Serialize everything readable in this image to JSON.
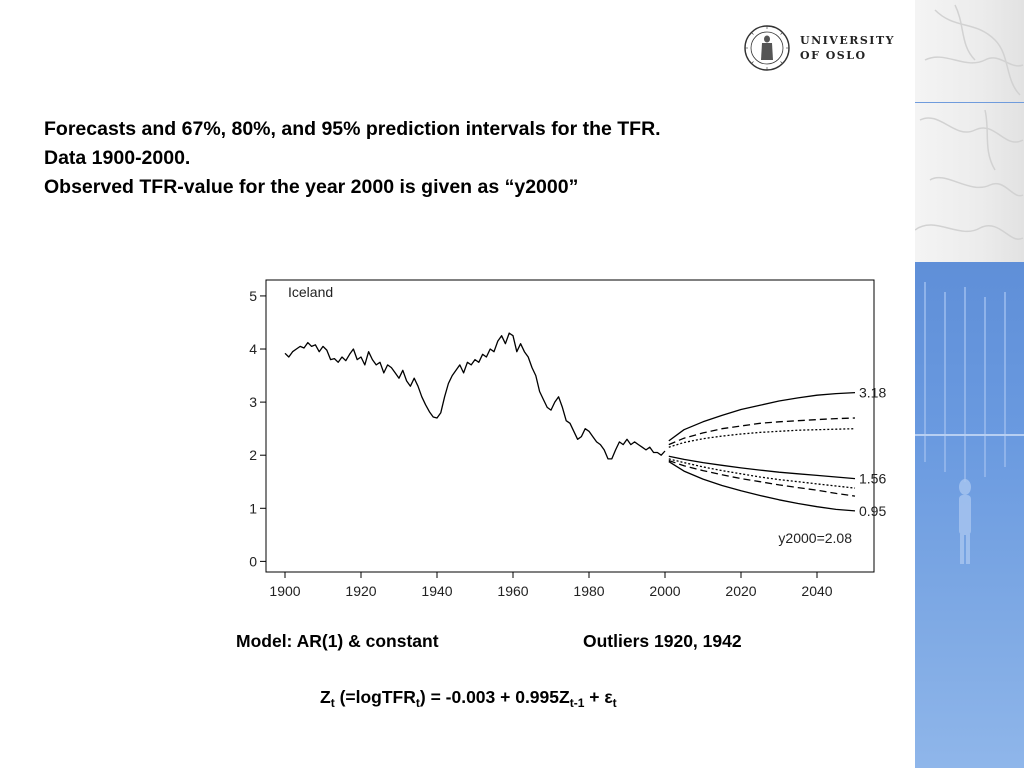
{
  "header": {
    "logo_line1": "UNIVERSITY",
    "logo_line2": "OF OSLO"
  },
  "title": {
    "line1": "Forecasts and 67%, 80%, and 95% prediction intervals for the TFR.",
    "line2": "Data 1900-2000.",
    "line3": "Observed TFR-value for the year 2000 is given as “y2000”"
  },
  "colors": {
    "series": "#000000",
    "side_panel_blue": "#6a9ae0"
  },
  "chart_data": {
    "type": "line",
    "title": "Iceland",
    "xlabel": "",
    "ylabel": "",
    "xlim": [
      1895,
      2055
    ],
    "ylim": [
      -0.2,
      5.3
    ],
    "x_ticks": [
      1900,
      1920,
      1940,
      1960,
      1980,
      2000,
      2020,
      2040
    ],
    "y_ticks": [
      0,
      1,
      2,
      3,
      4,
      5
    ],
    "grid": false,
    "series": [
      {
        "style": "solid",
        "points": [
          [
            1900,
            3.92
          ],
          [
            1901,
            3.85
          ],
          [
            1902,
            3.95
          ],
          [
            1903,
            4.0
          ],
          [
            1904,
            4.05
          ],
          [
            1905,
            4.02
          ],
          [
            1906,
            4.12
          ],
          [
            1907,
            4.05
          ],
          [
            1908,
            4.08
          ],
          [
            1909,
            3.95
          ],
          [
            1910,
            4.05
          ],
          [
            1911,
            3.98
          ],
          [
            1912,
            3.8
          ],
          [
            1913,
            3.82
          ],
          [
            1914,
            3.75
          ],
          [
            1915,
            3.85
          ],
          [
            1916,
            3.78
          ],
          [
            1917,
            3.9
          ],
          [
            1918,
            4.0
          ],
          [
            1919,
            3.8
          ],
          [
            1920,
            3.85
          ],
          [
            1921,
            3.7
          ],
          [
            1922,
            3.95
          ],
          [
            1923,
            3.8
          ],
          [
            1924,
            3.7
          ],
          [
            1925,
            3.75
          ],
          [
            1926,
            3.55
          ],
          [
            1927,
            3.7
          ],
          [
            1928,
            3.65
          ],
          [
            1929,
            3.55
          ],
          [
            1930,
            3.45
          ],
          [
            1931,
            3.6
          ],
          [
            1932,
            3.4
          ],
          [
            1933,
            3.3
          ],
          [
            1934,
            3.45
          ],
          [
            1935,
            3.3
          ],
          [
            1936,
            3.1
          ],
          [
            1937,
            2.95
          ],
          [
            1938,
            2.82
          ],
          [
            1939,
            2.72
          ],
          [
            1940,
            2.7
          ],
          [
            1941,
            2.8
          ],
          [
            1942,
            3.1
          ],
          [
            1943,
            3.35
          ],
          [
            1944,
            3.5
          ],
          [
            1945,
            3.6
          ],
          [
            1946,
            3.7
          ],
          [
            1947,
            3.55
          ],
          [
            1948,
            3.75
          ],
          [
            1949,
            3.7
          ],
          [
            1950,
            3.8
          ],
          [
            1951,
            3.75
          ],
          [
            1952,
            3.9
          ],
          [
            1953,
            3.85
          ],
          [
            1954,
            4.0
          ],
          [
            1955,
            3.95
          ],
          [
            1956,
            4.15
          ],
          [
            1957,
            4.25
          ],
          [
            1958,
            4.1
          ],
          [
            1959,
            4.3
          ],
          [
            1960,
            4.25
          ],
          [
            1961,
            3.95
          ],
          [
            1962,
            4.1
          ],
          [
            1963,
            3.95
          ],
          [
            1964,
            3.85
          ],
          [
            1965,
            3.65
          ],
          [
            1966,
            3.5
          ],
          [
            1967,
            3.2
          ],
          [
            1968,
            3.05
          ],
          [
            1969,
            2.9
          ],
          [
            1970,
            2.85
          ],
          [
            1971,
            3.0
          ],
          [
            1972,
            3.1
          ],
          [
            1973,
            2.9
          ],
          [
            1974,
            2.65
          ],
          [
            1975,
            2.6
          ],
          [
            1976,
            2.45
          ],
          [
            1977,
            2.3
          ],
          [
            1978,
            2.35
          ],
          [
            1979,
            2.5
          ],
          [
            1980,
            2.45
          ],
          [
            1981,
            2.35
          ],
          [
            1982,
            2.25
          ],
          [
            1983,
            2.2
          ],
          [
            1984,
            2.1
          ],
          [
            1985,
            1.93
          ],
          [
            1986,
            1.93
          ],
          [
            1987,
            2.1
          ],
          [
            1988,
            2.25
          ],
          [
            1989,
            2.2
          ],
          [
            1990,
            2.3
          ],
          [
            1991,
            2.2
          ],
          [
            1992,
            2.25
          ],
          [
            1993,
            2.2
          ],
          [
            1994,
            2.15
          ],
          [
            1995,
            2.1
          ],
          [
            1996,
            2.15
          ],
          [
            1997,
            2.05
          ],
          [
            1998,
            2.05
          ],
          [
            1999,
            2.0
          ],
          [
            2000,
            2.08
          ]
        ]
      },
      {
        "style": "solid",
        "end_label": "3.18",
        "points": [
          [
            2001,
            2.27
          ],
          [
            2005,
            2.48
          ],
          [
            2010,
            2.63
          ],
          [
            2015,
            2.75
          ],
          [
            2020,
            2.86
          ],
          [
            2025,
            2.94
          ],
          [
            2030,
            3.02
          ],
          [
            2035,
            3.08
          ],
          [
            2040,
            3.13
          ],
          [
            2045,
            3.16
          ],
          [
            2050,
            3.18
          ]
        ]
      },
      {
        "style": "dashed",
        "points": [
          [
            2001,
            2.2
          ],
          [
            2005,
            2.32
          ],
          [
            2010,
            2.42
          ],
          [
            2015,
            2.5
          ],
          [
            2020,
            2.55
          ],
          [
            2025,
            2.6
          ],
          [
            2030,
            2.63
          ],
          [
            2035,
            2.65
          ],
          [
            2040,
            2.67
          ],
          [
            2045,
            2.69
          ],
          [
            2050,
            2.7
          ]
        ]
      },
      {
        "style": "dotted",
        "points": [
          [
            2001,
            2.15
          ],
          [
            2005,
            2.24
          ],
          [
            2010,
            2.31
          ],
          [
            2015,
            2.36
          ],
          [
            2020,
            2.4
          ],
          [
            2025,
            2.43
          ],
          [
            2030,
            2.45
          ],
          [
            2035,
            2.47
          ],
          [
            2040,
            2.48
          ],
          [
            2045,
            2.49
          ],
          [
            2050,
            2.5
          ]
        ]
      },
      {
        "style": "solid",
        "end_label": "1.56",
        "points": [
          [
            2001,
            1.98
          ],
          [
            2005,
            1.92
          ],
          [
            2010,
            1.86
          ],
          [
            2015,
            1.81
          ],
          [
            2020,
            1.76
          ],
          [
            2025,
            1.72
          ],
          [
            2030,
            1.68
          ],
          [
            2035,
            1.65
          ],
          [
            2040,
            1.62
          ],
          [
            2045,
            1.59
          ],
          [
            2050,
            1.56
          ]
        ]
      },
      {
        "style": "dotted",
        "points": [
          [
            2001,
            1.93
          ],
          [
            2005,
            1.86
          ],
          [
            2010,
            1.78
          ],
          [
            2015,
            1.71
          ],
          [
            2020,
            1.65
          ],
          [
            2025,
            1.59
          ],
          [
            2030,
            1.54
          ],
          [
            2035,
            1.5
          ],
          [
            2040,
            1.46
          ],
          [
            2045,
            1.42
          ],
          [
            2050,
            1.38
          ]
        ]
      },
      {
        "style": "dashed",
        "points": [
          [
            2001,
            1.9
          ],
          [
            2005,
            1.8
          ],
          [
            2010,
            1.71
          ],
          [
            2015,
            1.63
          ],
          [
            2020,
            1.56
          ],
          [
            2025,
            1.5
          ],
          [
            2030,
            1.44
          ],
          [
            2035,
            1.39
          ],
          [
            2040,
            1.34
          ],
          [
            2045,
            1.28
          ],
          [
            2050,
            1.23
          ]
        ]
      },
      {
        "style": "solid",
        "end_label": "0.95",
        "points": [
          [
            2001,
            1.88
          ],
          [
            2005,
            1.7
          ],
          [
            2010,
            1.55
          ],
          [
            2015,
            1.43
          ],
          [
            2020,
            1.33
          ],
          [
            2025,
            1.24
          ],
          [
            2030,
            1.16
          ],
          [
            2035,
            1.09
          ],
          [
            2040,
            1.03
          ],
          [
            2045,
            0.98
          ],
          [
            2050,
            0.95
          ]
        ]
      }
    ],
    "annotations": [
      "y2000=2.08"
    ]
  },
  "captions": {
    "model": "Model: AR(1) & constant",
    "outliers": "Outliers 1920, 1942"
  },
  "formula": {
    "z": "Z",
    "t": "t",
    "part1": " (=logTFR",
    "part2": ") = -0.003 + 0.995Z",
    "t_minus_1": "t-1",
    "part3": " + ε"
  }
}
